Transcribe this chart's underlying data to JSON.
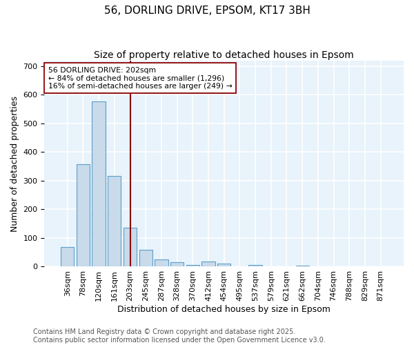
{
  "title": "56, DORLING DRIVE, EPSOM, KT17 3BH",
  "subtitle": "Size of property relative to detached houses in Epsom",
  "xlabel": "Distribution of detached houses by size in Epsom",
  "ylabel": "Number of detached properties",
  "bin_labels": [
    "36sqm",
    "78sqm",
    "120sqm",
    "161sqm",
    "203sqm",
    "245sqm",
    "287sqm",
    "328sqm",
    "370sqm",
    "412sqm",
    "454sqm",
    "495sqm",
    "537sqm",
    "579sqm",
    "621sqm",
    "662sqm",
    "704sqm",
    "746sqm",
    "788sqm",
    "829sqm",
    "871sqm"
  ],
  "bar_values": [
    68,
    357,
    578,
    317,
    135,
    58,
    25,
    15,
    5,
    18,
    10,
    0,
    5,
    0,
    0,
    4,
    0,
    0,
    0,
    0,
    0
  ],
  "bar_color": "#c9daea",
  "bar_edge_color": "#5a9fc8",
  "vline_x_index": 4,
  "vline_color": "#8b0000",
  "annotation_text": "56 DORLING DRIVE: 202sqm\n← 84% of detached houses are smaller (1,296)\n16% of semi-detached houses are larger (249) →",
  "annotation_box_color": "white",
  "annotation_box_edge_color": "#8b0000",
  "ylim": [
    0,
    720
  ],
  "yticks": [
    0,
    100,
    200,
    300,
    400,
    500,
    600,
    700
  ],
  "background_color": "#e8f3fb",
  "grid_color": "white",
  "footnote": "Contains HM Land Registry data © Crown copyright and database right 2025.\nContains public sector information licensed under the Open Government Licence v3.0.",
  "title_fontsize": 11,
  "subtitle_fontsize": 10,
  "label_fontsize": 9,
  "tick_fontsize": 8,
  "footnote_fontsize": 7
}
